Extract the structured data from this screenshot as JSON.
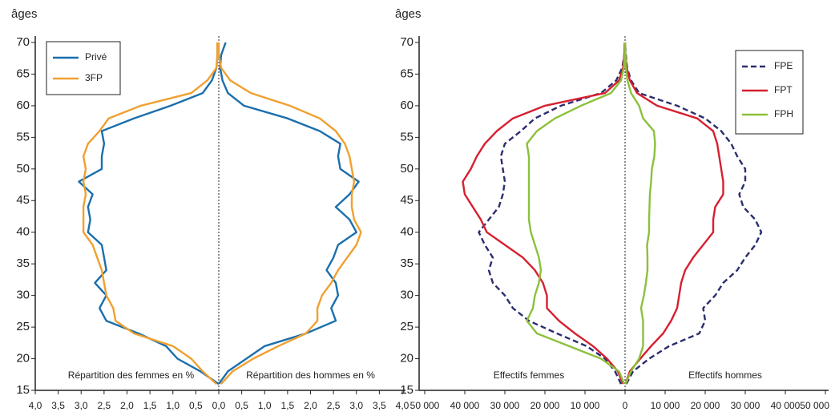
{
  "chart_data": [
    {
      "type": "line",
      "ylabel": "âges",
      "y": [
        16,
        18,
        20,
        22,
        24,
        26,
        28,
        30,
        32,
        34,
        36,
        38,
        40,
        42,
        44,
        46,
        48,
        50,
        52,
        54,
        56,
        58,
        60,
        62,
        64,
        66,
        68,
        70
      ],
      "ylim": [
        15,
        70
      ],
      "yticks": [
        15,
        20,
        25,
        30,
        35,
        40,
        45,
        50,
        55,
        60,
        65,
        70
      ],
      "xlim": [
        0,
        4
      ],
      "xticks_left": [
        {
          "value": 4,
          "label": "4,0"
        },
        {
          "value": 3.5,
          "label": "3,5"
        },
        {
          "value": 3,
          "label": "3,0"
        },
        {
          "value": 2.5,
          "label": "2,5"
        },
        {
          "value": 2,
          "label": "2,0"
        },
        {
          "value": 1.5,
          "label": "1,5"
        },
        {
          "value": 1,
          "label": "1,0"
        },
        {
          "value": 0.5,
          "label": "0,5"
        }
      ],
      "xticks_right": [
        {
          "value": 0,
          "label": "0,0"
        },
        {
          "value": 0.5,
          "label": "0,5"
        },
        {
          "value": 1,
          "label": "1,0"
        },
        {
          "value": 1.5,
          "label": "1,5"
        },
        {
          "value": 2,
          "label": "2,0"
        },
        {
          "value": 2.5,
          "label": "2,5"
        },
        {
          "value": 3,
          "label": "3,0"
        },
        {
          "value": 3.5,
          "label": "3,5"
        },
        {
          "value": 4,
          "label": "4,0"
        }
      ],
      "left_tick_color": "#e2001a",
      "left_label": "Répartition des femmes en %",
      "right_label": "Répartition des hommes en %",
      "legend": "upper left",
      "series": [
        {
          "name": "Privé",
          "color": "#1a6fad",
          "dash": false,
          "left": [
            0,
            0.4,
            0.9,
            1.15,
            1.75,
            2.45,
            2.6,
            2.45,
            2.7,
            2.45,
            2.5,
            2.55,
            2.85,
            2.8,
            2.85,
            2.75,
            3.05,
            2.55,
            2.55,
            2.5,
            2.55,
            1.85,
            1.05,
            0.35,
            0.15,
            0.05,
            0.03,
            0.03
          ],
          "right": [
            0,
            0.2,
            0.6,
            1,
            1.9,
            2.55,
            2.45,
            2.6,
            2.55,
            2.35,
            2.5,
            2.6,
            3,
            2.85,
            2.55,
            2.85,
            3.05,
            2.65,
            2.6,
            2.65,
            2.2,
            1.5,
            0.55,
            0.2,
            0.08,
            0.03,
            0.05,
            0.15
          ]
        },
        {
          "name": "3FP",
          "color": "#f0a030",
          "dash": false,
          "left": [
            0.05,
            0.35,
            0.6,
            1,
            1.85,
            2.25,
            2.3,
            2.45,
            2.5,
            2.55,
            2.65,
            2.75,
            2.95,
            2.95,
            2.95,
            2.9,
            2.95,
            2.9,
            2.95,
            2.85,
            2.6,
            2.4,
            1.7,
            0.6,
            0.25,
            0.05,
            0.03,
            0.03
          ],
          "right": [
            0.05,
            0.3,
            0.75,
            1.3,
            1.9,
            2.15,
            2.15,
            2.25,
            2.45,
            2.6,
            2.8,
            3,
            3.1,
            2.95,
            2.9,
            2.9,
            2.95,
            2.9,
            2.85,
            2.75,
            2.55,
            2.2,
            1.55,
            0.7,
            0.25,
            0.05,
            0,
            0
          ]
        }
      ]
    },
    {
      "type": "line",
      "ylabel": "âges",
      "y": [
        16,
        18,
        20,
        22,
        24,
        26,
        28,
        30,
        32,
        34,
        36,
        38,
        40,
        42,
        44,
        46,
        48,
        50,
        52,
        54,
        56,
        58,
        60,
        62,
        64,
        66,
        68,
        70
      ],
      "ylim": [
        15,
        70
      ],
      "yticks": [
        15,
        20,
        25,
        30,
        35,
        40,
        45,
        50,
        55,
        60,
        65,
        70
      ],
      "xlim": [
        0,
        50000
      ],
      "xticks_left": [
        {
          "value": 50000,
          "label": "50 000"
        },
        {
          "value": 40000,
          "label": "40 000"
        },
        {
          "value": 30000,
          "label": "30 000"
        },
        {
          "value": 20000,
          "label": "20 000"
        },
        {
          "value": 10000,
          "label": "10 000"
        }
      ],
      "xticks_right": [
        0,
        {
          "value": 10000,
          "label": "10 000"
        },
        {
          "value": 20000,
          "label": "20 000"
        },
        {
          "value": 30000,
          "label": "30 000"
        },
        {
          "value": 40000,
          "label": "40 000"
        },
        {
          "value": 50000,
          "label": "50 000"
        }
      ],
      "left_tick_color": "#e2001a",
      "left_label": "Effectifs femmes",
      "right_label": "Effectifs hommes",
      "legend": "upper right",
      "series": [
        {
          "name": "FPE",
          "color": "#2b2e6e",
          "dash": true,
          "left": [
            1000,
            2500,
            5000,
            9600,
            17000,
            24000,
            28000,
            30000,
            33000,
            34000,
            33000,
            35000,
            36500,
            34000,
            31500,
            30500,
            30000,
            30500,
            31000,
            30000,
            26000,
            22500,
            16000,
            6000,
            2200,
            700,
            200,
            0
          ],
          "right": [
            300,
            2000,
            6000,
            11000,
            18500,
            20000,
            19500,
            22500,
            24500,
            28000,
            30000,
            32500,
            34000,
            32500,
            29500,
            28500,
            30000,
            30000,
            28000,
            26500,
            24000,
            20000,
            13000,
            3500,
            1500,
            500,
            200,
            0
          ]
        },
        {
          "name": "FPT",
          "color": "#d62030",
          "dash": false,
          "left": [
            500,
            1800,
            4500,
            8000,
            12500,
            16500,
            19500,
            19500,
            20500,
            22500,
            25500,
            30000,
            34500,
            36000,
            38000,
            40000,
            40500,
            38500,
            37000,
            35000,
            32000,
            28000,
            20000,
            5000,
            1500,
            500,
            200,
            100
          ],
          "right": [
            100,
            1200,
            3800,
            6500,
            9500,
            11500,
            13000,
            13500,
            14000,
            15000,
            17000,
            19500,
            22000,
            22000,
            22500,
            24500,
            24500,
            24000,
            23500,
            23000,
            22000,
            18000,
            8000,
            3000,
            1200,
            400,
            100,
            0
          ]
        },
        {
          "name": "FPH",
          "color": "#8cc03c",
          "dash": false,
          "left": [
            200,
            1500,
            6000,
            14000,
            22000,
            24500,
            23000,
            22500,
            21500,
            21000,
            21500,
            22500,
            23500,
            24000,
            24000,
            24000,
            24000,
            24000,
            24000,
            24500,
            22000,
            17500,
            11000,
            3500,
            1000,
            300,
            100,
            0
          ],
          "right": [
            100,
            1500,
            3500,
            4500,
            4500,
            4500,
            4000,
            4700,
            5200,
            5600,
            5600,
            5500,
            6000,
            6000,
            6100,
            6200,
            6500,
            6700,
            7300,
            7500,
            7200,
            4500,
            3500,
            1500,
            600,
            200,
            100,
            0
          ]
        }
      ]
    }
  ]
}
